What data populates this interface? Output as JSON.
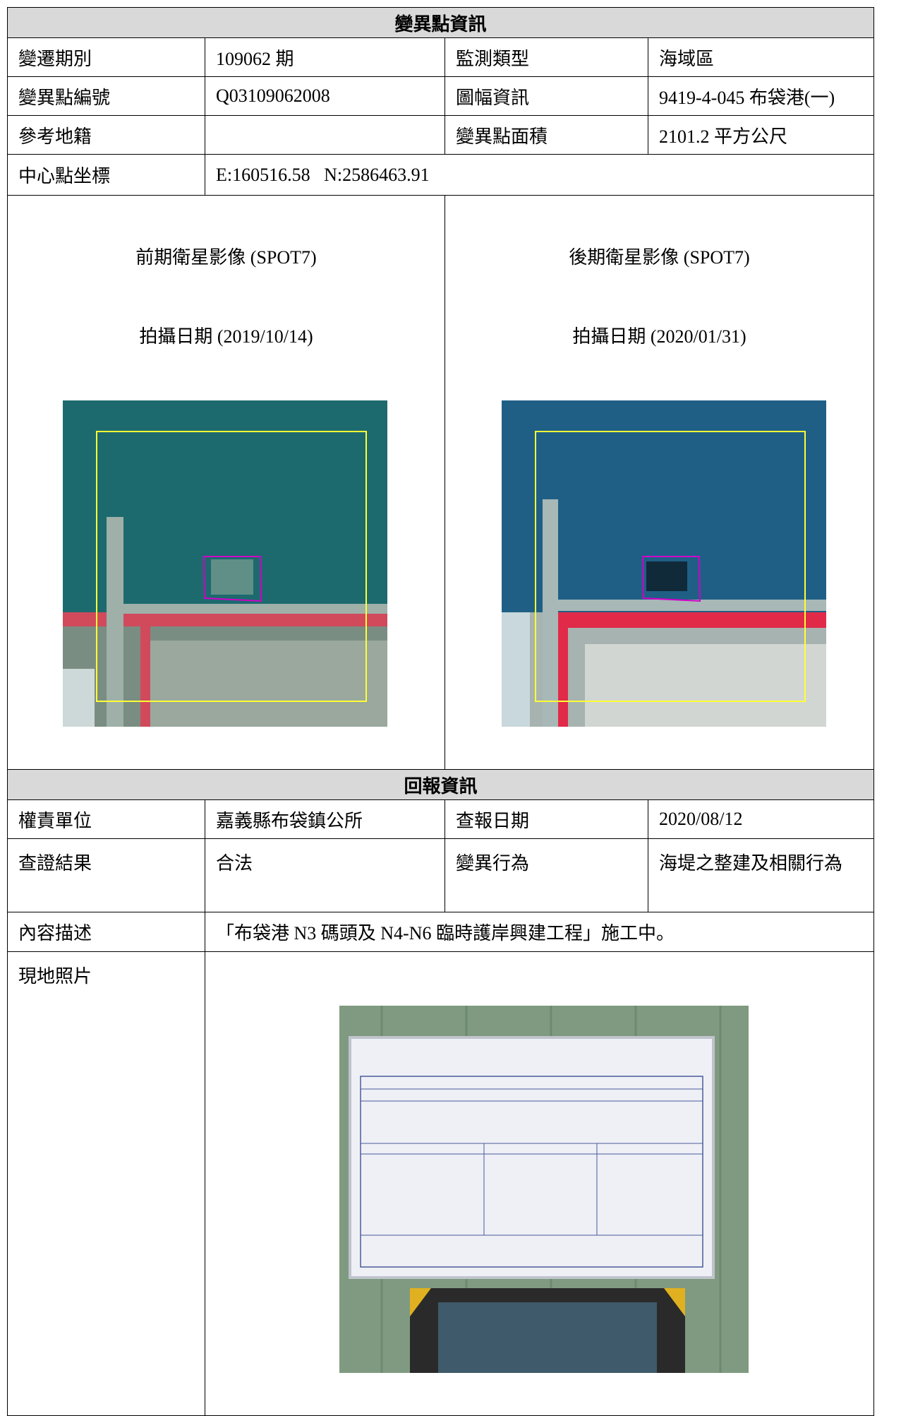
{
  "info": {
    "title": "變異點資訊",
    "rows": [
      [
        "變遷期別",
        "109062 期",
        "監測類型",
        "海域區"
      ],
      [
        "變異點編號",
        "Q03109062008",
        "圖幅資訊",
        "9419-4-045 布袋港(一)"
      ],
      [
        "參考地籍",
        "",
        "變異點面積",
        "2101.2 平方公尺"
      ]
    ],
    "center": {
      "label": "中心點坐標",
      "value": "E:160516.58   N:2586463.91"
    },
    "images": [
      {
        "caption": "前期衛星影像 (SPOT7)",
        "date": "拍攝日期 (2019/10/14)"
      },
      {
        "caption": "後期衛星影像 (SPOT7)",
        "date": "拍攝日期 (2020/01/31)"
      }
    ]
  },
  "report": {
    "title": "回報資訊",
    "rows": [
      [
        "權責單位",
        "嘉義縣布袋鎮公所",
        "查報日期",
        "2020/08/12"
      ],
      [
        "查證結果",
        "合法",
        "變異行為",
        "海堤之整建及相關行為"
      ]
    ],
    "description": {
      "label": "內容描述",
      "value": "「布袋港 N3 碼頭及 N4-N6 臨時護岸興建工程」施工中。"
    },
    "photo": {
      "label": "現地照片"
    }
  }
}
